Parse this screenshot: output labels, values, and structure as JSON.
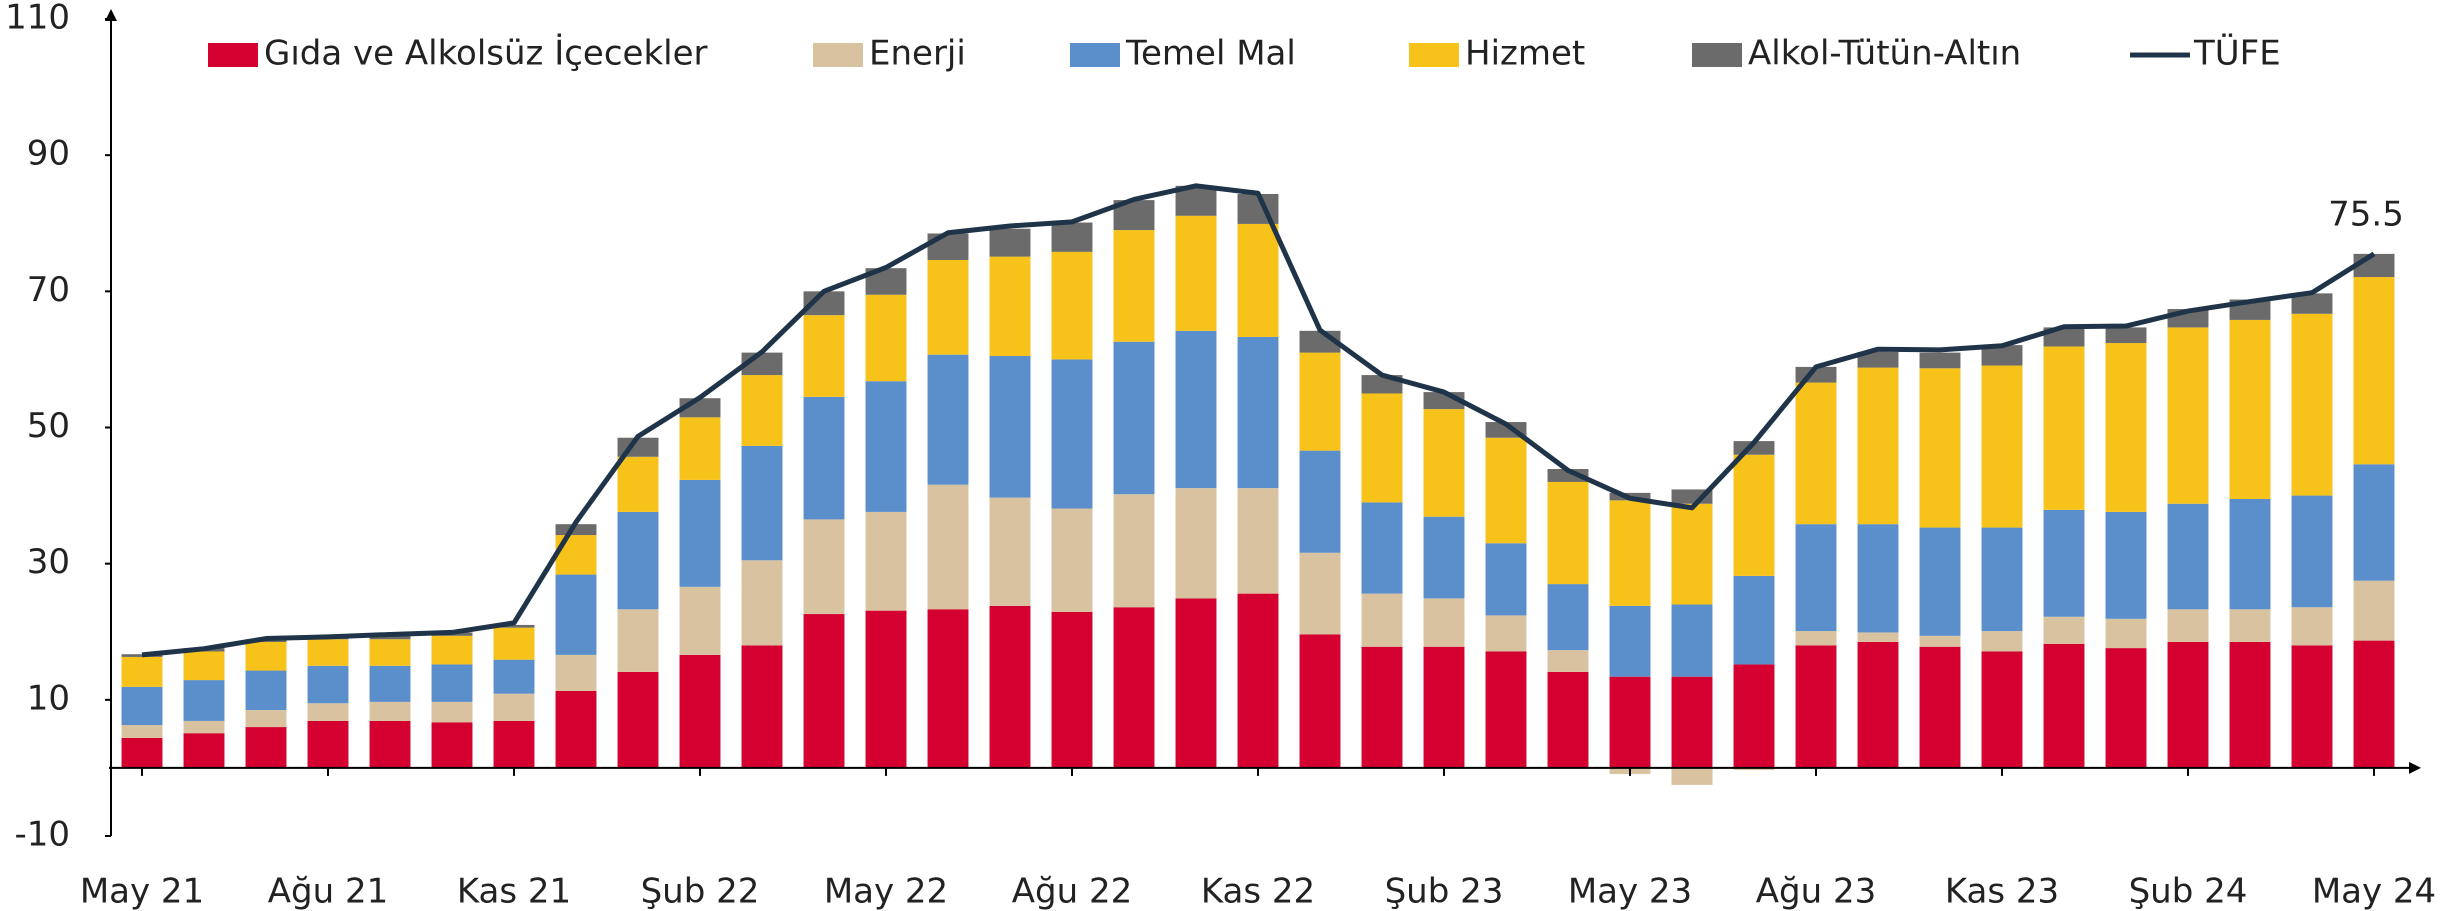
{
  "chart_data": {
    "type": "stacked_bar_line",
    "categories": [
      "May 21",
      null,
      null,
      "Ağu 21",
      null,
      null,
      "Kas 21",
      null,
      null,
      "Şub 22",
      null,
      null,
      "May 22",
      null,
      null,
      "Ağu 22",
      null,
      null,
      "Kas 22",
      null,
      null,
      "Şub 23",
      null,
      null,
      "May 23",
      null,
      null,
      "Ağu 23",
      null,
      null,
      "Kas 23",
      null,
      null,
      "Şub 24",
      null,
      null,
      "May 24"
    ],
    "series": [
      {
        "name": "Gıda ve Alkolsüz İçecekler",
        "color": "#d4002f",
        "kind": "bar",
        "values": [
          4.4,
          5.1,
          6.0,
          6.9,
          6.9,
          6.7,
          6.9,
          11.3,
          14.1,
          16.6,
          18.0,
          22.6,
          23.1,
          23.3,
          23.8,
          22.9,
          23.6,
          24.9,
          25.6,
          19.6,
          17.8,
          17.8,
          17.1,
          14.1,
          13.4,
          13.4,
          15.2,
          18.0,
          18.5,
          17.8,
          17.1,
          18.2,
          17.6,
          18.5,
          18.5,
          18.0,
          18.7
        ]
      },
      {
        "name": "Enerji",
        "color": "#d9c2a0",
        "kind": "bar",
        "values": [
          1.9,
          1.8,
          2.5,
          2.6,
          2.8,
          3.0,
          4.0,
          5.3,
          9.2,
          10.0,
          12.5,
          13.9,
          14.5,
          18.3,
          15.9,
          15.2,
          16.6,
          16.2,
          15.5,
          12.0,
          7.8,
          7.1,
          5.3,
          3.2,
          -0.9,
          -2.5,
          -0.3,
          2.1,
          1.4,
          1.6,
          3.0,
          4.0,
          4.3,
          4.8,
          4.8,
          5.6,
          8.8
        ]
      },
      {
        "name": "Temel Mal",
        "color": "#5b8fcb",
        "kind": "bar",
        "values": [
          5.6,
          6.0,
          5.8,
          5.5,
          5.3,
          5.5,
          5.0,
          11.8,
          14.3,
          15.7,
          16.8,
          18.0,
          19.2,
          19.1,
          20.8,
          21.9,
          22.4,
          23.1,
          22.2,
          15.0,
          13.4,
          12.0,
          10.6,
          9.7,
          10.4,
          10.6,
          13.0,
          15.7,
          15.9,
          15.9,
          15.2,
          15.7,
          15.7,
          15.5,
          16.2,
          16.4,
          17.1
        ]
      },
      {
        "name": "Hizmet",
        "color": "#f7c21a",
        "kind": "bar",
        "values": [
          4.4,
          4.2,
          4.2,
          3.9,
          3.9,
          4.2,
          4.7,
          5.8,
          8.1,
          9.2,
          10.4,
          12.0,
          12.7,
          13.9,
          14.6,
          15.8,
          16.4,
          16.9,
          16.6,
          14.4,
          16.0,
          15.8,
          15.5,
          15.0,
          15.5,
          14.8,
          17.8,
          20.8,
          23.0,
          23.4,
          23.8,
          24.0,
          24.8,
          25.9,
          26.3,
          26.7,
          27.5
        ]
      },
      {
        "name": "Alkol-Tütün-Altın",
        "color": "#6b6b6b",
        "kind": "bar",
        "values": [
          0.4,
          0.5,
          0.4,
          0.3,
          0.5,
          0.5,
          0.4,
          1.6,
          2.8,
          2.8,
          3.3,
          3.5,
          3.9,
          3.9,
          4.1,
          4.3,
          4.4,
          4.4,
          4.4,
          3.2,
          2.7,
          2.5,
          2.3,
          1.9,
          1.1,
          2.1,
          2.0,
          2.3,
          2.3,
          2.3,
          3.0,
          2.8,
          2.3,
          2.7,
          3.0,
          3.0,
          3.4
        ]
      },
      {
        "name": "TÜFE",
        "color": "#1f3448",
        "kind": "line",
        "data_labels": "last",
        "values": [
          16.6,
          17.5,
          19.0,
          19.25,
          19.6,
          19.9,
          21.3,
          36.1,
          48.7,
          54.4,
          61.1,
          70.0,
          73.5,
          78.6,
          79.6,
          80.2,
          83.5,
          85.5,
          84.4,
          64.3,
          57.7,
          55.2,
          50.5,
          43.7,
          39.6,
          38.2,
          47.8,
          58.9,
          61.5,
          61.4,
          62.0,
          64.8,
          64.9,
          67.1,
          68.5,
          69.8,
          75.5
        ]
      }
    ],
    "ylim": [
      -10,
      110
    ],
    "yticks": [
      -10,
      10,
      30,
      50,
      70,
      90,
      110
    ],
    "grid": false
  }
}
